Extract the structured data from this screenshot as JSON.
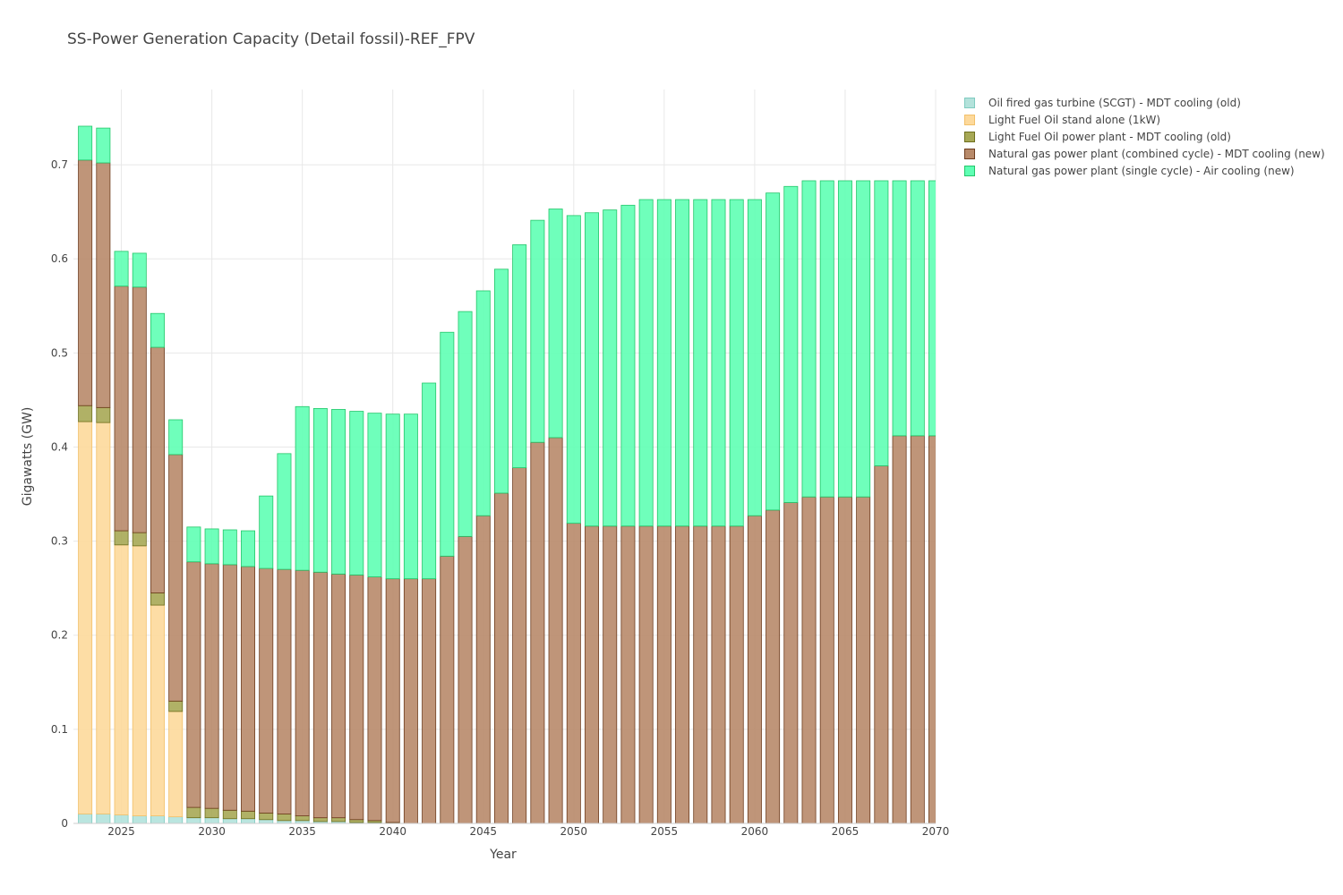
{
  "chart_data": {
    "type": "bar",
    "stacked": true,
    "title": "SS-Power Generation Capacity (Detail fossil)-REF_FPV",
    "xlabel": "Year",
    "ylabel": "Gigawatts (GW)",
    "ylim": [
      0,
      0.78
    ],
    "xlim": [
      2022.35,
      2070
    ],
    "grid": true,
    "legend_position": "top-right, outside plot",
    "xticks": [
      2025,
      2030,
      2035,
      2040,
      2045,
      2050,
      2055,
      2060,
      2065,
      2070
    ],
    "xtick_labels": [
      "2025",
      "2030",
      "2035",
      "2040",
      "2045",
      "2050",
      "2055",
      "2060",
      "2065",
      "2070"
    ],
    "yticks": [
      0,
      0.1,
      0.2,
      0.3,
      0.4,
      0.5,
      0.6,
      0.7
    ],
    "ytick_labels": [
      "0",
      "0.1",
      "0.2",
      "0.3",
      "0.4",
      "0.5",
      "0.6",
      "0.7"
    ],
    "x": [
      2023,
      2024,
      2025,
      2026,
      2027,
      2028,
      2029,
      2030,
      2031,
      2032,
      2033,
      2034,
      2035,
      2036,
      2037,
      2038,
      2039,
      2040,
      2041,
      2042,
      2043,
      2044,
      2045,
      2046,
      2047,
      2048,
      2049,
      2050,
      2051,
      2052,
      2053,
      2054,
      2055,
      2056,
      2057,
      2058,
      2059,
      2060,
      2061,
      2062,
      2063,
      2064,
      2065,
      2066,
      2067,
      2068,
      2069,
      2070
    ],
    "series": [
      {
        "name": "Oil fired gas turbine (SCGT) - MDT cooling (old)",
        "color": "#b3e2db",
        "border": "#7fcbc0",
        "values": [
          0.01,
          0.01,
          0.009,
          0.008,
          0.008,
          0.007,
          0.006,
          0.006,
          0.005,
          0.005,
          0.004,
          0.003,
          0.003,
          0.002,
          0.002,
          0.001,
          0.001,
          0,
          0,
          0,
          0,
          0,
          0,
          0,
          0,
          0,
          0,
          0,
          0,
          0,
          0,
          0,
          0,
          0,
          0,
          0,
          0,
          0,
          0,
          0,
          0,
          0,
          0,
          0,
          0,
          0,
          0,
          0
        ]
      },
      {
        "name": "Light Fuel Oil stand alone (1kW)",
        "color": "#fdd99b",
        "border": "#f2c06a",
        "values": [
          0.417,
          0.416,
          0.287,
          0.287,
          0.224,
          0.112,
          0,
          0,
          0,
          0,
          0,
          0,
          0,
          0,
          0,
          0,
          0,
          0,
          0,
          0,
          0,
          0,
          0,
          0,
          0,
          0,
          0,
          0,
          0,
          0,
          0,
          0,
          0,
          0,
          0,
          0,
          0,
          0,
          0,
          0,
          0,
          0,
          0,
          0,
          0,
          0,
          0,
          0
        ]
      },
      {
        "name": "Light Fuel Oil power plant - MDT cooling (old)",
        "color": "#a7a855",
        "border": "#6f701f",
        "values": [
          0.017,
          0.016,
          0.015,
          0.014,
          0.013,
          0.011,
          0.011,
          0.01,
          0.009,
          0.008,
          0.007,
          0.007,
          0.005,
          0.004,
          0.004,
          0.003,
          0.002,
          0.001,
          0,
          0,
          0,
          0,
          0,
          0,
          0,
          0,
          0,
          0,
          0,
          0,
          0,
          0,
          0,
          0,
          0,
          0,
          0,
          0,
          0,
          0,
          0,
          0,
          0,
          0,
          0,
          0,
          0,
          0
        ]
      },
      {
        "name": "Natural gas power plant (combined cycle) - MDT cooling (new)",
        "color": "#b88a6a",
        "border": "#6e3d1f",
        "values": [
          0.261,
          0.26,
          0.26,
          0.261,
          0.261,
          0.262,
          0.261,
          0.26,
          0.261,
          0.26,
          0.26,
          0.26,
          0.261,
          0.261,
          0.259,
          0.26,
          0.259,
          0.259,
          0.26,
          0.26,
          0.284,
          0.305,
          0.327,
          0.351,
          0.378,
          0.405,
          0.41,
          0.319,
          0.316,
          0.316,
          0.316,
          0.316,
          0.316,
          0.316,
          0.316,
          0.316,
          0.316,
          0.327,
          0.333,
          0.341,
          0.347,
          0.347,
          0.347,
          0.347,
          0.38,
          0.412,
          0.412,
          0.412
        ]
      },
      {
        "name": "Natural gas power plant (single cycle) - Air cooling (new)",
        "color": "#5fffb4",
        "border": "#24c66a",
        "values": [
          0.036,
          0.037,
          0.037,
          0.036,
          0.036,
          0.037,
          0.037,
          0.037,
          0.037,
          0.038,
          0.077,
          0.123,
          0.174,
          0.174,
          0.175,
          0.174,
          0.174,
          0.175,
          0.175,
          0.208,
          0.238,
          0.239,
          0.239,
          0.238,
          0.237,
          0.236,
          0.243,
          0.327,
          0.333,
          0.336,
          0.341,
          0.347,
          0.347,
          0.347,
          0.347,
          0.347,
          0.347,
          0.336,
          0.337,
          0.336,
          0.336,
          0.336,
          0.336,
          0.336,
          0.303,
          0.271,
          0.271,
          0.271
        ]
      }
    ]
  }
}
